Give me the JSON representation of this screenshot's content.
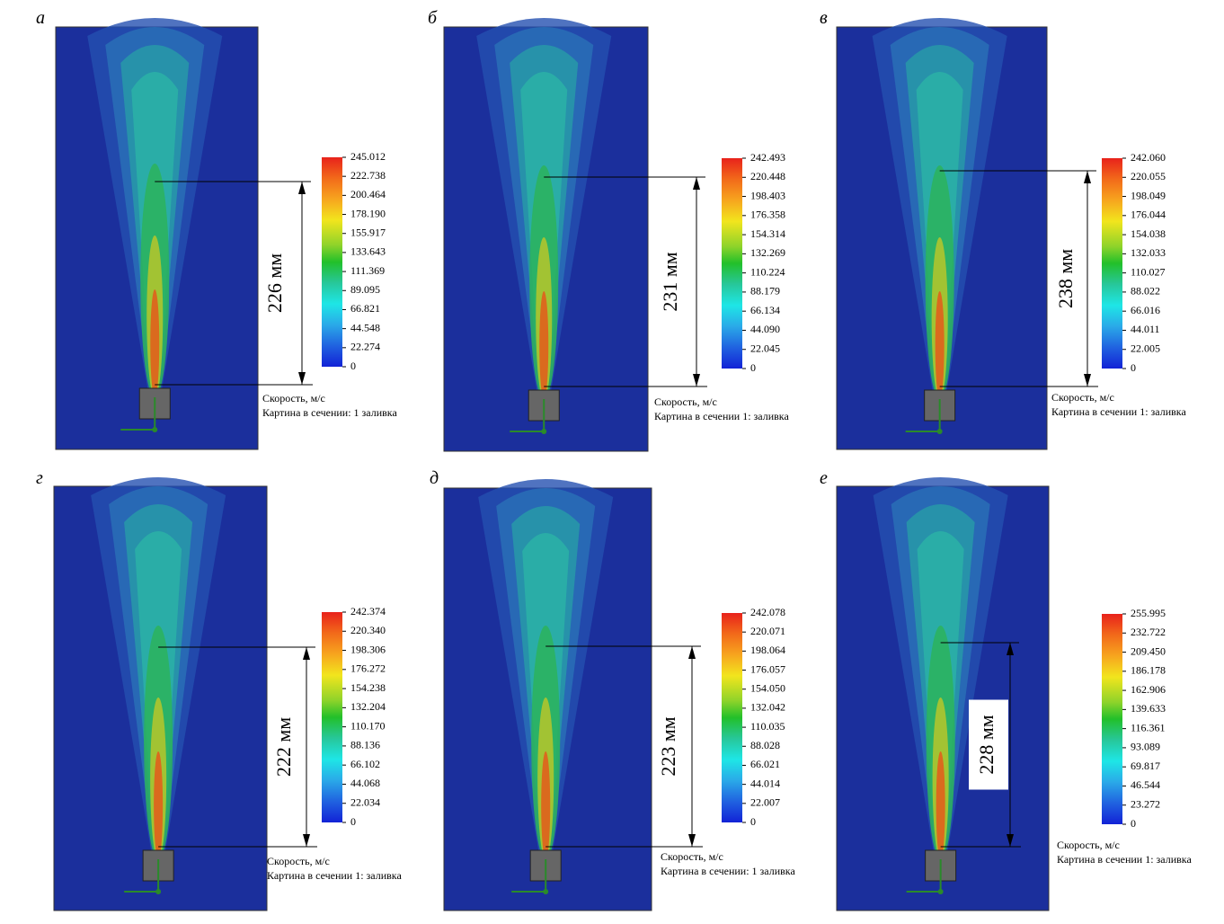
{
  "panels": [
    {
      "letter": "а",
      "ticks": [
        "245.012",
        "222.738",
        "200.464",
        "178.190",
        "155.917",
        "133.643",
        "111.369",
        "89.095",
        "66.821",
        "44.548",
        "22.274",
        "0"
      ],
      "dimension": "226 мм",
      "caption": [
        "Скорость, м/с",
        "Картина в сечении: 1 заливка"
      ]
    },
    {
      "letter": "б",
      "ticks": [
        "242.493",
        "220.448",
        "198.403",
        "176.358",
        "154.314",
        "132.269",
        "110.224",
        "88.179",
        "66.134",
        "44.090",
        "22.045",
        "0"
      ],
      "dimension": "231 мм",
      "caption": [
        "Скорость, м/с",
        "Картина в сечении 1: заливка"
      ]
    },
    {
      "letter": "в",
      "ticks": [
        "242.060",
        "220.055",
        "198.049",
        "176.044",
        "154.038",
        "132.033",
        "110.027",
        "88.022",
        "66.016",
        "44.011",
        "22.005",
        "0"
      ],
      "dimension": "238 мм",
      "caption": [
        "Скорость, м/с",
        "Картина в сечении 1: заливка"
      ]
    },
    {
      "letter": "г",
      "ticks": [
        "242.374",
        "220.340",
        "198.306",
        "176.272",
        "154.238",
        "132.204",
        "110.170",
        "88.136",
        "66.102",
        "44.068",
        "22.034",
        "0"
      ],
      "dimension": "222 мм",
      "caption": [
        "Скорость, м/с",
        "Картина в сечении 1: заливка"
      ]
    },
    {
      "letter": "д",
      "ticks": [
        "242.078",
        "220.071",
        "198.064",
        "176.057",
        "154.050",
        "132.042",
        "110.035",
        "88.028",
        "66.021",
        "44.014",
        "22.007",
        "0"
      ],
      "dimension": "223 мм",
      "caption": [
        "Скорость, м/с",
        "Картина в сечении: 1 заливка"
      ]
    },
    {
      "letter": "е",
      "ticks": [
        "255.995",
        "232.722",
        "209.450",
        "186.178",
        "162.906",
        "139.633",
        "116.361",
        "93.089",
        "69.817",
        "46.544",
        "23.272",
        "0"
      ],
      "dimension": "228 мм",
      "caption": [
        "Скорость, м/с",
        "Картина в сечении 1: заливка"
      ]
    }
  ]
}
